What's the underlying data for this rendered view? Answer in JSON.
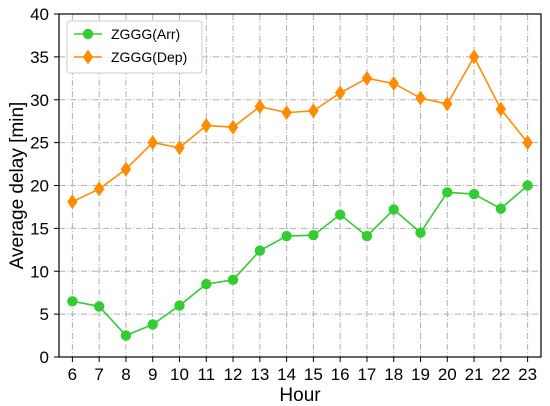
{
  "chart_data": {
    "type": "line",
    "xlabel": "Hour",
    "ylabel": "Average delay [min]",
    "x": [
      6,
      7,
      8,
      9,
      10,
      11,
      12,
      13,
      14,
      15,
      16,
      17,
      18,
      19,
      20,
      21,
      22,
      23
    ],
    "xlim": [
      5.5,
      23.5
    ],
    "ylim": [
      0,
      40
    ],
    "yticks": [
      0,
      5,
      10,
      15,
      20,
      25,
      30,
      35,
      40
    ],
    "grid": true,
    "legend_position": "top-left",
    "series": [
      {
        "name": "ZGGG(Arr)",
        "color": "#33cc33",
        "marker": "circle",
        "values": [
          6.5,
          5.9,
          2.5,
          3.8,
          6.0,
          8.5,
          9.0,
          12.4,
          14.1,
          14.2,
          16.6,
          14.1,
          17.2,
          14.5,
          19.2,
          19.0,
          17.3,
          20.0
        ]
      },
      {
        "name": "ZGGG(Dep)",
        "color": "#ff8c00",
        "marker": "diamond",
        "values": [
          18.1,
          19.6,
          21.9,
          25.0,
          24.4,
          27.0,
          26.8,
          29.2,
          28.5,
          28.7,
          30.8,
          32.5,
          31.9,
          30.2,
          29.5,
          35.0,
          28.9,
          25.0
        ]
      }
    ]
  }
}
